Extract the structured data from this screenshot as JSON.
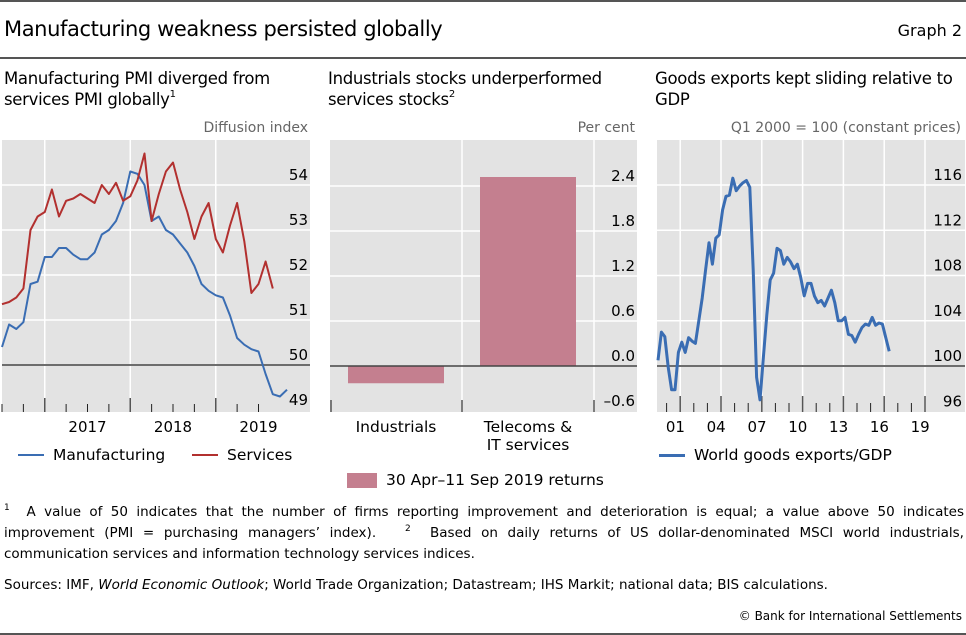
{
  "header": {
    "title": "Manufacturing weakness persisted globally",
    "graph_label": "Graph 2"
  },
  "panels": [
    {
      "title_line1": "Manufacturing PMI diverged from",
      "title_line2": "services PMI globally",
      "title_sup": "1",
      "unit": "Diffusion index"
    },
    {
      "title_line1": "Industrials stocks underperformed",
      "title_line2": "services stocks",
      "title_sup": "2",
      "unit": "Per cent"
    },
    {
      "title_line1": "Goods exports kept sliding relative to",
      "title_line2": "GDP",
      "title_sup": "",
      "unit": "Q1 2000 = 100 (constant prices)"
    }
  ],
  "colors": {
    "manufacturing": "#3a6db3",
    "services": "#b2302f",
    "bar": "#c47f8f",
    "plot_bg": "#e3e3e3",
    "grid": "#ffffff",
    "zero_line": "#6d6d6d"
  },
  "chart_data": [
    {
      "type": "line",
      "title": "Manufacturing PMI diverged from services PMI globally",
      "ylabel": "Diffusion index",
      "ylim": [
        49,
        55
      ],
      "yticks": [
        49,
        50,
        51,
        52,
        53,
        54
      ],
      "ytick_labels": [
        "49",
        "50",
        "51",
        "52",
        "53",
        "54"
      ],
      "reference_line": 50,
      "x_start": "2016-07",
      "x_labels": [
        "2017",
        "2018",
        "2019"
      ],
      "frequency": "monthly",
      "grid": true,
      "legend_position": "bottom",
      "series": [
        {
          "name": "Manufacturing",
          "color": "#3a6db3",
          "values": [
            50.4,
            50.9,
            50.8,
            50.95,
            51.8,
            51.85,
            52.4,
            52.4,
            52.6,
            52.6,
            52.45,
            52.35,
            52.35,
            52.5,
            52.9,
            53.0,
            53.2,
            53.6,
            54.3,
            54.25,
            54.0,
            53.2,
            53.3,
            53.0,
            52.9,
            52.7,
            52.5,
            52.2,
            51.8,
            51.65,
            51.55,
            51.5,
            51.1,
            50.6,
            50.45,
            50.35,
            50.3,
            49.8,
            49.35,
            49.3,
            49.45
          ]
        },
        {
          "name": "Services",
          "color": "#b2302f",
          "values": [
            51.35,
            51.4,
            51.5,
            51.7,
            53.0,
            53.3,
            53.4,
            53.9,
            53.3,
            53.65,
            53.7,
            53.8,
            53.7,
            53.6,
            54.0,
            53.8,
            54.05,
            53.65,
            53.75,
            54.1,
            54.7,
            53.2,
            53.8,
            54.3,
            54.5,
            53.9,
            53.4,
            52.8,
            53.3,
            53.6,
            52.8,
            52.5,
            53.1,
            53.6,
            52.75,
            51.6,
            51.8,
            52.3,
            51.7
          ]
        }
      ]
    },
    {
      "type": "bar",
      "title": "Industrials stocks underperformed services stocks",
      "ylabel": "Per cent",
      "categories": [
        "Industrials",
        "Telecoms & IT services"
      ],
      "category_labels": [
        [
          "Industrials"
        ],
        [
          "Telecoms &",
          "IT services"
        ]
      ],
      "series": [
        {
          "name": "30 Apr–11 Sep 2019 returns",
          "color": "#c47f8f",
          "values": [
            -0.23,
            2.52
          ]
        }
      ],
      "ylim": [
        -0.6,
        3.0
      ],
      "yticks": [
        -0.6,
        0.0,
        0.6,
        1.2,
        1.8,
        2.4
      ],
      "ytick_labels": [
        "–0.6",
        "0.0",
        "0.6",
        "1.2",
        "1.8",
        "2.4"
      ],
      "reference_line": 0,
      "grid": true,
      "legend_position": "bottom"
    },
    {
      "type": "line",
      "title": "Goods exports kept sliding relative to GDP",
      "ylabel": "Q1 2000 = 100 (constant prices)",
      "ylim": [
        96,
        120
      ],
      "yticks": [
        96,
        100,
        104,
        108,
        112,
        116
      ],
      "ytick_labels": [
        "96",
        "100",
        "104",
        "108",
        "112",
        "116"
      ],
      "reference_line": 100,
      "x_start": "2000-Q1",
      "frequency": "quarterly",
      "x_labels": [
        "01",
        "04",
        "07",
        "10",
        "13",
        "16",
        "19"
      ],
      "grid": true,
      "legend_position": "bottom-left",
      "series": [
        {
          "name": "World goods exports/GDP",
          "color": "#3a6db3",
          "values": [
            100.5,
            103.0,
            102.6,
            99.9,
            97.9,
            97.9,
            101.2,
            102.1,
            101.2,
            102.5,
            102.2,
            102.0,
            104.0,
            106.0,
            108.5,
            110.9,
            109.0,
            111.3,
            111.6,
            113.8,
            115.0,
            115.1,
            116.6,
            115.5,
            115.9,
            116.2,
            116.4,
            115.8,
            108.5,
            99.0,
            97.0,
            100.8,
            104.5,
            107.6,
            108.2,
            110.4,
            110.2,
            109.0,
            109.6,
            109.2,
            108.6,
            109.0,
            107.8,
            106.2,
            107.3,
            107.3,
            106.2,
            105.6,
            105.8,
            105.3,
            106.0,
            106.7,
            105.6,
            104.0,
            104.0,
            104.3,
            102.8,
            102.7,
            102.1,
            102.8,
            103.4,
            103.7,
            103.6,
            104.3,
            103.6,
            103.8,
            103.7,
            102.5,
            101.3
          ]
        }
      ]
    }
  ],
  "footnotes": {
    "fn1_mark": "1",
    "fn1_text": "A value of 50 indicates that the number of firms reporting improvement and deterioration is equal; a value above 50 indicates improvement (PMI = purchasing managers’ index).",
    "fn2_mark": "2",
    "fn2_text": "Based on daily returns of US dollar-denominated MSCI world industrials, communication services and information technology services indices."
  },
  "sources": {
    "prefix": "Sources: IMF, ",
    "italic": "World Economic Outlook",
    "rest": "; World Trade Organization; Datastream; IHS Markit; national data; BIS calculations."
  },
  "copyright": "© Bank for International Settlements"
}
